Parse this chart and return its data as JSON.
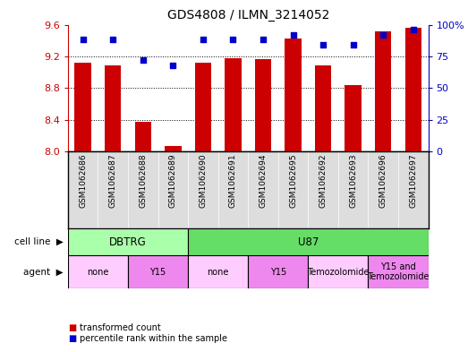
{
  "title": "GDS4808 / ILMN_3214052",
  "samples": [
    "GSM1062686",
    "GSM1062687",
    "GSM1062688",
    "GSM1062689",
    "GSM1062690",
    "GSM1062691",
    "GSM1062694",
    "GSM1062695",
    "GSM1062692",
    "GSM1062693",
    "GSM1062696",
    "GSM1062697"
  ],
  "bar_values": [
    9.12,
    9.09,
    8.37,
    8.07,
    9.12,
    9.18,
    9.17,
    9.43,
    9.09,
    8.84,
    9.52,
    9.56
  ],
  "dot_values": [
    88,
    88,
    72,
    68,
    88,
    88,
    88,
    92,
    84,
    84,
    92,
    96
  ],
  "ylim": [
    8.0,
    9.6
  ],
  "y2lim": [
    0,
    100
  ],
  "bar_color": "#cc0000",
  "dot_color": "#0000cc",
  "cell_line_groups": [
    {
      "label": "DBTRG",
      "start": 0,
      "end": 4,
      "color": "#aaffaa"
    },
    {
      "label": "U87",
      "start": 4,
      "end": 12,
      "color": "#66dd66"
    }
  ],
  "agent_groups": [
    {
      "label": "none",
      "start": 0,
      "end": 2,
      "color": "#ffccff"
    },
    {
      "label": "Y15",
      "start": 2,
      "end": 4,
      "color": "#ee88ee"
    },
    {
      "label": "none",
      "start": 4,
      "end": 6,
      "color": "#ffccff"
    },
    {
      "label": "Y15",
      "start": 6,
      "end": 8,
      "color": "#ee88ee"
    },
    {
      "label": "Temozolomide",
      "start": 8,
      "end": 10,
      "color": "#ffccff"
    },
    {
      "label": "Y15 and\nTemozolomide",
      "start": 10,
      "end": 12,
      "color": "#ee88ee"
    }
  ],
  "yticks": [
    8.0,
    8.4,
    8.8,
    9.2,
    9.6
  ],
  "y2ticks": [
    0,
    25,
    50,
    75,
    100
  ],
  "y2ticklabels": [
    "0",
    "25",
    "50",
    "75",
    "100%"
  ],
  "sample_bg": "#dddddd",
  "background_color": "#ffffff"
}
